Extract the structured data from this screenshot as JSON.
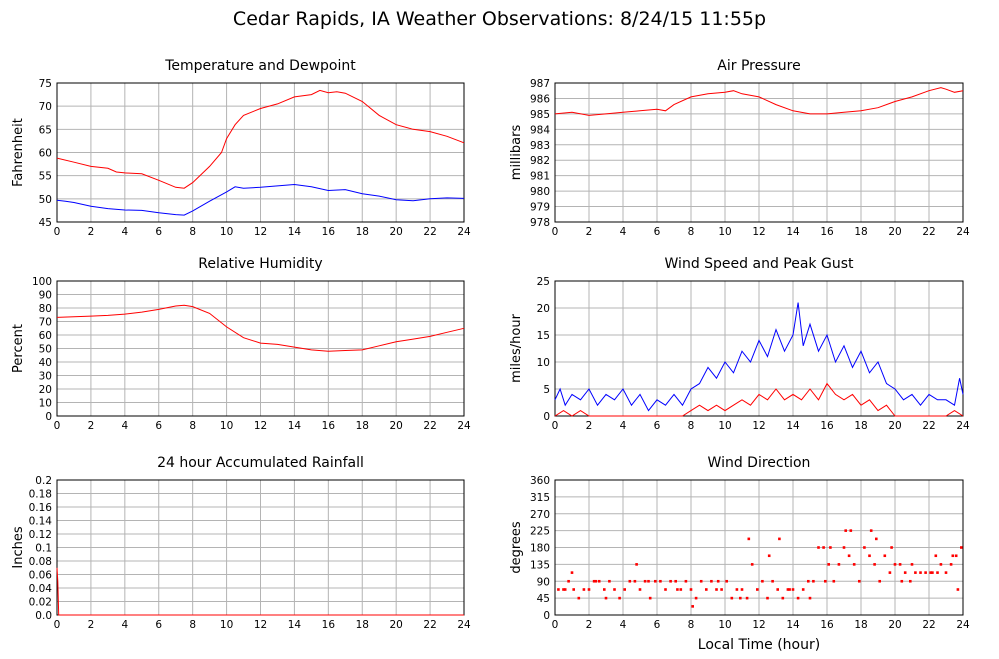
{
  "title": "Cedar Rapids, IA Weather Observations: 8/24/15 11:55p",
  "chart_data": [
    {
      "id": "temp",
      "type": "line",
      "title": "Temperature and Dewpoint",
      "xlabel": "",
      "ylabel": "Fahrenheit",
      "xlim": [
        0,
        24
      ],
      "ylim": [
        45,
        75
      ],
      "yticks": [
        45,
        50,
        55,
        60,
        65,
        70,
        75
      ],
      "xticks": [
        0,
        2,
        4,
        6,
        8,
        10,
        12,
        14,
        16,
        18,
        20,
        22,
        24
      ],
      "grid": true,
      "series": [
        {
          "color": "#ff0000",
          "x": [
            0,
            1,
            2,
            3,
            3.5,
            4,
            5,
            6,
            7,
            7.5,
            8,
            9,
            9.7,
            10,
            10.5,
            11,
            12,
            13,
            14,
            15,
            15.5,
            16,
            16.5,
            17,
            18,
            19,
            20,
            21,
            22,
            23,
            24
          ],
          "y": [
            58.8,
            57.9,
            57,
            56.6,
            55.8,
            55.6,
            55.4,
            54,
            52.5,
            52.3,
            53.5,
            57,
            60,
            63,
            66,
            68,
            69.5,
            70.5,
            72,
            72.5,
            73.4,
            72.9,
            73.1,
            72.8,
            71,
            68,
            66,
            65,
            64.5,
            63.5,
            62.1
          ]
        },
        {
          "color": "#0000ff",
          "x": [
            0,
            0.5,
            1,
            2,
            3,
            4,
            5,
            6,
            7,
            7.5,
            8,
            9,
            10,
            10.5,
            11,
            12,
            13,
            14,
            15,
            16,
            17,
            18,
            19,
            20,
            21,
            22,
            23,
            24
          ],
          "y": [
            49.7,
            49.5,
            49.2,
            48.4,
            47.9,
            47.6,
            47.5,
            47,
            46.6,
            46.5,
            47.4,
            49.5,
            51.5,
            52.6,
            52.3,
            52.5,
            52.8,
            53.1,
            52.6,
            51.8,
            52,
            51.1,
            50.6,
            49.8,
            49.6,
            50,
            50.2,
            50.1
          ]
        }
      ]
    },
    {
      "id": "pressure",
      "type": "line",
      "title": "Air Pressure",
      "xlabel": "",
      "ylabel": "millibars",
      "xlim": [
        0,
        24
      ],
      "ylim": [
        978,
        987
      ],
      "yticks": [
        978,
        979,
        980,
        981,
        982,
        983,
        984,
        985,
        986,
        987
      ],
      "xticks": [
        0,
        2,
        4,
        6,
        8,
        10,
        12,
        14,
        16,
        18,
        20,
        22,
        24
      ],
      "grid": true,
      "series": [
        {
          "color": "#ff0000",
          "x": [
            0,
            1,
            2,
            3,
            4,
            5,
            6,
            6.5,
            7,
            8,
            9,
            10,
            10.5,
            11,
            12,
            13,
            14,
            15,
            16,
            17,
            18,
            19,
            20,
            21,
            22,
            22.7,
            23,
            23.5,
            24
          ],
          "y": [
            985,
            985.1,
            984.9,
            985,
            985.1,
            985.2,
            985.3,
            985.2,
            985.6,
            986.1,
            986.3,
            986.4,
            986.5,
            986.3,
            986.1,
            985.6,
            985.2,
            985,
            985,
            985.1,
            985.2,
            985.4,
            985.8,
            986.1,
            986.5,
            986.7,
            986.6,
            986.4,
            986.5
          ]
        }
      ]
    },
    {
      "id": "humidity",
      "type": "line",
      "title": "Relative Humidity",
      "xlabel": "",
      "ylabel": "Percent",
      "xlim": [
        0,
        24
      ],
      "ylim": [
        0,
        100
      ],
      "yticks": [
        0,
        10,
        20,
        30,
        40,
        50,
        60,
        70,
        80,
        90,
        100
      ],
      "xticks": [
        0,
        2,
        4,
        6,
        8,
        10,
        12,
        14,
        16,
        18,
        20,
        22,
        24
      ],
      "grid": true,
      "series": [
        {
          "color": "#ff0000",
          "x": [
            0,
            1,
            2,
            3,
            4,
            5,
            6,
            7,
            7.5,
            8,
            9,
            10,
            11,
            12,
            13,
            14,
            15,
            16,
            17,
            18,
            19,
            20,
            21,
            22,
            23,
            24
          ],
          "y": [
            73,
            73.5,
            74,
            74.5,
            75.5,
            77,
            79,
            81.5,
            82,
            81,
            76,
            66,
            58,
            54,
            53,
            51,
            49,
            48,
            48.5,
            49,
            52,
            55,
            57,
            59,
            62,
            65
          ]
        }
      ]
    },
    {
      "id": "wind",
      "type": "line",
      "title": "Wind Speed and Peak Gust",
      "xlabel": "",
      "ylabel": "miles/hour",
      "xlim": [
        0,
        24
      ],
      "ylim": [
        0,
        25
      ],
      "yticks": [
        0,
        5,
        10,
        15,
        20,
        25
      ],
      "xticks": [
        0,
        2,
        4,
        6,
        8,
        10,
        12,
        14,
        16,
        18,
        20,
        22,
        24
      ],
      "grid": true,
      "series": [
        {
          "color": "#0000ff",
          "x": [
            0,
            0.3,
            0.6,
            1,
            1.5,
            2,
            2.5,
            3,
            3.5,
            4,
            4.5,
            5,
            5.5,
            6,
            6.5,
            7,
            7.5,
            8,
            8.5,
            9,
            9.5,
            10,
            10.5,
            11,
            11.5,
            12,
            12.5,
            13,
            13.5,
            14,
            14.3,
            14.6,
            15,
            15.5,
            16,
            16.5,
            17,
            17.5,
            18,
            18.5,
            19,
            19.5,
            20,
            20.5,
            21,
            21.5,
            22,
            22.5,
            23,
            23.5,
            23.8,
            24
          ],
          "y": [
            3,
            5,
            2,
            4,
            3,
            5,
            2,
            4,
            3,
            5,
            2,
            4,
            1,
            3,
            2,
            4,
            2,
            5,
            6,
            9,
            7,
            10,
            8,
            12,
            10,
            14,
            11,
            16,
            12,
            15,
            21,
            13,
            17,
            12,
            15,
            10,
            13,
            9,
            12,
            8,
            10,
            6,
            5,
            3,
            4,
            2,
            4,
            3,
            3,
            2,
            7,
            4
          ]
        },
        {
          "color": "#ff0000",
          "x": [
            0,
            0.5,
            1,
            1.5,
            2,
            3,
            4,
            5,
            6,
            7,
            7.5,
            8,
            8.5,
            9,
            9.5,
            10,
            10.5,
            11,
            11.5,
            12,
            12.5,
            13,
            13.5,
            14,
            14.5,
            15,
            15.5,
            16,
            16.5,
            17,
            17.5,
            18,
            18.5,
            19,
            19.5,
            20,
            21,
            22,
            23,
            23.5,
            24
          ],
          "y": [
            0,
            1,
            0,
            1,
            0,
            0,
            0,
            0,
            0,
            0,
            0,
            1,
            2,
            1,
            2,
            1,
            2,
            3,
            2,
            4,
            3,
            5,
            3,
            4,
            3,
            5,
            3,
            6,
            4,
            3,
            4,
            2,
            3,
            1,
            2,
            0,
            0,
            0,
            0,
            1,
            0
          ]
        }
      ]
    },
    {
      "id": "rain",
      "type": "line",
      "title": "24 hour Accumulated Rainfall",
      "xlabel": "",
      "ylabel": "Inches",
      "xlim": [
        0,
        24
      ],
      "ylim": [
        0,
        0.2
      ],
      "yticks": [
        0.0,
        0.02,
        0.04,
        0.06,
        0.08,
        0.1,
        0.12,
        0.14,
        0.16,
        0.18,
        0.2
      ],
      "ytick_labels": [
        "0.0",
        "0.02",
        "0.04",
        "0.06",
        "0.08",
        "0.1",
        "0.12",
        "0.14",
        "0.16",
        "0.18",
        "0.2"
      ],
      "xticks": [
        0,
        2,
        4,
        6,
        8,
        10,
        12,
        14,
        16,
        18,
        20,
        22,
        24
      ],
      "grid": true,
      "series": [
        {
          "color": "#ff0000",
          "x": [
            0,
            0.05,
            0.1,
            0.3,
            24
          ],
          "y": [
            0.07,
            0.05,
            0.0,
            0.0,
            0.0
          ]
        }
      ]
    },
    {
      "id": "direction",
      "type": "scatter",
      "title": "Wind Direction",
      "xlabel": "Local Time (hour)",
      "ylabel": "degrees",
      "xlim": [
        0,
        24
      ],
      "ylim": [
        0,
        360
      ],
      "yticks": [
        0,
        45,
        90,
        135,
        180,
        225,
        270,
        315,
        360
      ],
      "xticks": [
        0,
        2,
        4,
        6,
        8,
        10,
        12,
        14,
        16,
        18,
        20,
        22,
        24
      ],
      "grid": true,
      "series": [
        {
          "color": "#ff0000",
          "x": [
            0.2,
            0.5,
            0.8,
            1.1,
            1.4,
            1.7,
            2.0,
            2.3,
            2.6,
            2.9,
            3.2,
            3.5,
            3.8,
            4.1,
            4.4,
            4.7,
            5.0,
            5.3,
            5.6,
            5.9,
            6.2,
            6.5,
            6.8,
            7.1,
            7.4,
            7.7,
            8.0,
            8.3,
            8.6,
            8.9,
            9.2,
            9.5,
            9.8,
            10.1,
            10.4,
            10.7,
            11.0,
            11.3,
            11.6,
            11.9,
            12.2,
            12.5,
            12.8,
            13.1,
            13.4,
            13.7,
            14.0,
            14.3,
            14.6,
            14.9,
            15.2,
            15.5,
            15.8,
            16.1,
            16.4,
            16.7,
            17.0,
            17.3,
            17.6,
            17.9,
            18.2,
            18.5,
            18.8,
            19.1,
            19.4,
            19.7,
            20.0,
            20.3,
            20.6,
            20.9,
            21.2,
            21.5,
            21.8,
            22.1,
            22.4,
            22.7,
            23.0,
            23.3,
            23.6,
            23.9,
            0.6,
            2.4,
            4.8,
            7.2,
            9.6,
            11.4,
            12.6,
            13.8,
            15.0,
            16.2,
            17.4,
            18.6,
            19.8,
            21.0,
            22.2,
            23.4,
            1.0,
            3.0,
            5.5,
            8.1,
            10.9,
            13.2,
            15.9,
            17.1,
            18.9,
            20.4,
            22.5,
            23.7
          ],
          "y": [
            68,
            68,
            90,
            68,
            45,
            68,
            68,
            90,
            90,
            68,
            90,
            68,
            45,
            68,
            90,
            90,
            68,
            90,
            45,
            90,
            90,
            68,
            90,
            90,
            68,
            90,
            68,
            45,
            90,
            68,
            90,
            68,
            68,
            90,
            45,
            68,
            68,
            45,
            135,
            68,
            90,
            45,
            90,
            68,
            45,
            68,
            68,
            45,
            68,
            90,
            90,
            180,
            180,
            135,
            90,
            135,
            180,
            158,
            135,
            90,
            180,
            158,
            135,
            90,
            158,
            113,
            135,
            135,
            113,
            90,
            113,
            113,
            113,
            113,
            158,
            135,
            113,
            135,
            158,
            180,
            68,
            90,
            135,
            68,
            90,
            203,
            158,
            68,
            45,
            180,
            225,
            225,
            180,
            135,
            113,
            158,
            113,
            45,
            90,
            23,
            45,
            203,
            90,
            225,
            203,
            90,
            113,
            68
          ]
        }
      ]
    }
  ]
}
